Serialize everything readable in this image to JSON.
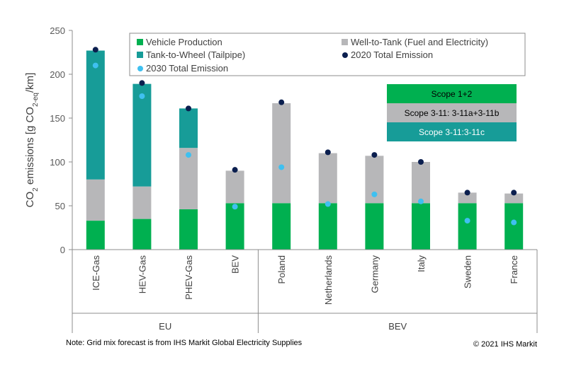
{
  "chart_data": {
    "type": "bar",
    "stacked": true,
    "categories": [
      "ICE-Gas",
      "HEV-Gas",
      "PHEV-Gas",
      "BEV",
      "Poland",
      "Netherlands",
      "Germany",
      "Italy",
      "Sweden",
      "France"
    ],
    "groups": [
      {
        "label": "EU",
        "categories": [
          "ICE-Gas",
          "HEV-Gas",
          "PHEV-Gas",
          "BEV"
        ]
      },
      {
        "label": "BEV",
        "categories": [
          "Poland",
          "Netherlands",
          "Germany",
          "Italy",
          "Sweden",
          "France"
        ]
      }
    ],
    "series": [
      {
        "name": "Vehicle Production",
        "color": "#00B050",
        "kind": "bar",
        "values": [
          33,
          35,
          46,
          53,
          53,
          53,
          53,
          53,
          53,
          53
        ]
      },
      {
        "name": "Well-to-Tank (Fuel and Electricity)",
        "color": "#B7B7B9",
        "kind": "bar",
        "values": [
          47,
          37,
          70,
          37,
          114,
          57,
          54,
          47,
          12,
          11
        ]
      },
      {
        "name": "Tank-to-Wheel (Tailpipe)",
        "color": "#179C98",
        "kind": "bar",
        "values": [
          147,
          117,
          45,
          0,
          0,
          0,
          0,
          0,
          0,
          0
        ]
      },
      {
        "name": "2020 Total Emission",
        "color": "#0B1F4F",
        "kind": "point",
        "values": [
          228,
          190,
          161,
          91,
          168,
          111,
          108,
          100,
          65,
          65
        ]
      },
      {
        "name": "2030 Total Emission",
        "color": "#3FC0F0",
        "kind": "point",
        "values": [
          210,
          175,
          108,
          49,
          94,
          52,
          63,
          55,
          33,
          31
        ]
      }
    ],
    "ylim": [
      0,
      250
    ],
    "yticks": [
      0,
      50,
      100,
      150,
      200,
      250
    ],
    "ylabel_parts": {
      "pre": "CO",
      "sub1": "2",
      "mid": " emissions [g CO",
      "sub2": "2-eq",
      "post": "/km]"
    },
    "xlabel": "",
    "grid": false,
    "legend_position": "top",
    "scope_boxes": [
      {
        "label": "Scope 1+2",
        "color": "#00B050",
        "text_color": "#000000"
      },
      {
        "label": "Scope 3-11: 3-11a+3-11b",
        "color": "#B7B7B9",
        "text_color": "#000000"
      },
      {
        "label": "Scope 3-11:3-11c",
        "color": "#179C98",
        "text_color": "#FFFFFF"
      }
    ]
  },
  "footer": {
    "note": "Note: Grid mix forecast is from IHS Markit Global Electricity Supplies",
    "copyright": "© 2021 IHS Markit"
  }
}
